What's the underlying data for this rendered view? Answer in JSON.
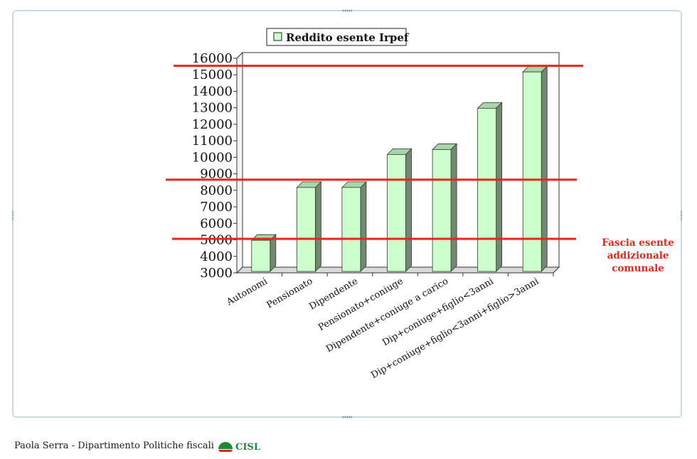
{
  "chart_data": {
    "type": "bar",
    "style": "3d-column",
    "categories": [
      "Autonomi",
      "Pensionato",
      "Dipendente",
      "Pensionato+coniuge",
      "Dipendente+coniuge a carico",
      "Dip+coniuge+figlio<3anni",
      "Dip+coniuge+figlio<3anni+figlio>3anni"
    ],
    "series": [
      {
        "name": "Reddito esente Irpef",
        "values": [
          4800,
          8000,
          8000,
          10000,
          10300,
          12800,
          15000
        ]
      }
    ],
    "yticks": [
      "3000",
      "4000",
      "5000",
      "6000",
      "7000",
      "8000",
      "9000",
      "10000",
      "11000",
      "12000",
      "13000",
      "14000",
      "15000",
      "16000"
    ],
    "ylim": [
      3000,
      16000
    ],
    "grid": true,
    "legend": "top",
    "reference_lines": [
      15200,
      8300,
      4800
    ],
    "annotation": "Fascia esente addizionale comunale",
    "colors": {
      "bar_front": "#ccffcc",
      "bar_side": "#6f8a6f",
      "reference_line": "#e8261b"
    }
  },
  "footer": {
    "author": "Paola Serra - Dipartimento Politiche fiscali",
    "logo_text": "CISL"
  }
}
